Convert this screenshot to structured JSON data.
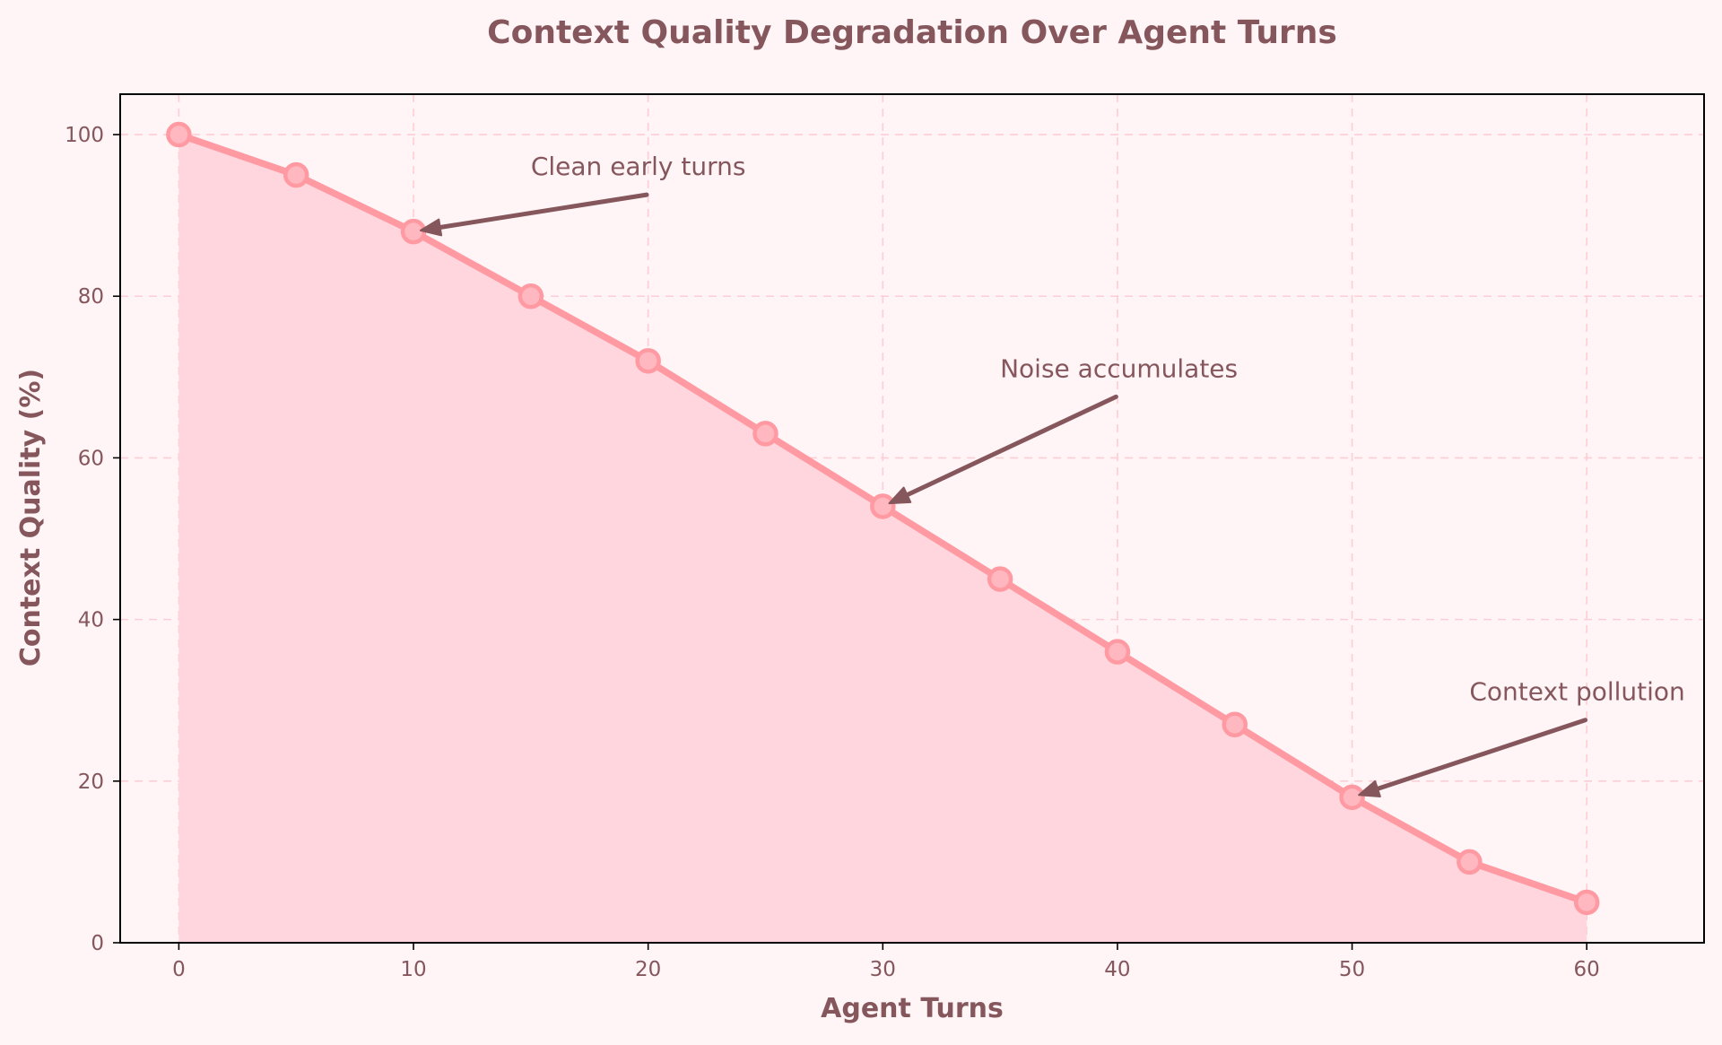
{
  "chart_data": {
    "type": "area",
    "title": "Context Quality Degradation Over Agent Turns",
    "xlabel": "Agent Turns",
    "ylabel": "Context Quality (%)",
    "xlim": [
      -2.5,
      65
    ],
    "ylim": [
      0,
      105
    ],
    "xticks": [
      0,
      10,
      20,
      30,
      40,
      50,
      60
    ],
    "yticks": [
      0,
      20,
      40,
      60,
      80,
      100
    ],
    "grid": true,
    "x": [
      0,
      5,
      10,
      15,
      20,
      25,
      30,
      35,
      40,
      45,
      50,
      55,
      60
    ],
    "series": [
      {
        "values": [
          100,
          95,
          88,
          80,
          72,
          63,
          54,
          45,
          36,
          27,
          18,
          10,
          5
        ],
        "color": "#ff9aa2",
        "fill": "#ffd6dd",
        "marker": "circle"
      }
    ],
    "annotations": [
      {
        "text": "Clean early turns",
        "target": [
          10,
          88
        ],
        "text_pos": [
          15,
          95
        ]
      },
      {
        "text": "Noise accumulates",
        "target": [
          30,
          54
        ],
        "text_pos": [
          35,
          70
        ]
      },
      {
        "text": "Context pollution",
        "target": [
          50,
          18
        ],
        "text_pos": [
          55,
          30
        ]
      }
    ],
    "colors": {
      "background": "#fff4f6",
      "text": "#85575c",
      "grid": "#ffcdd6",
      "arrow": "#85575c",
      "frame": "#000000"
    }
  }
}
